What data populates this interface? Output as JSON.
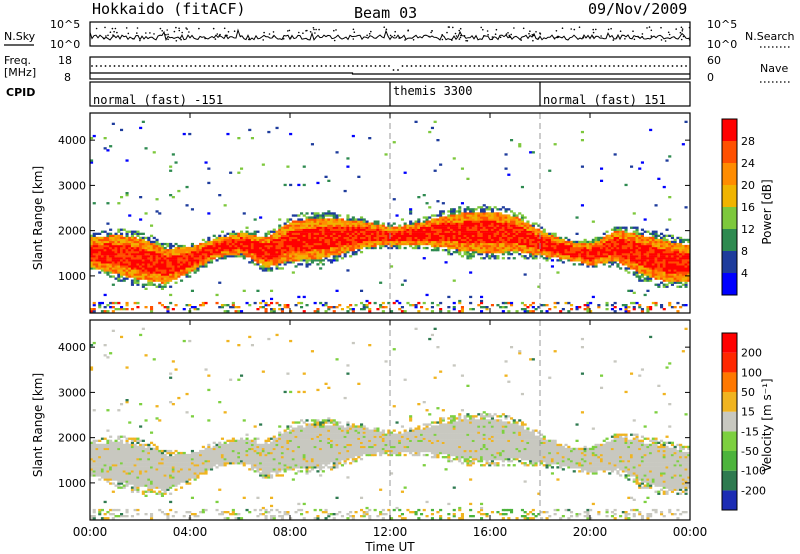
{
  "header": {
    "title": "Hokkaido (fitACF)",
    "beam": "Beam 03",
    "date": "09/Nov/2009"
  },
  "top_panels": {
    "nsky_label": "N.Sky",
    "nsky_ticks": [
      "10^5",
      "10^0"
    ],
    "nsearch_ticks": [
      "10^5",
      "10^0"
    ],
    "nsearch_label": "N.Search",
    "freq_label_1": "Freq.",
    "freq_label_2": "[MHz]",
    "freq_ticks": [
      "18",
      "8"
    ],
    "nave_ticks": [
      "60",
      "0"
    ],
    "nave_label": "Nave",
    "cpid_label": "CPID",
    "cpid_segments": [
      "normal (fast) -151",
      "themis 3300",
      "normal (fast) 151"
    ]
  },
  "power_panel": {
    "ylabel": "Slant Range [km]",
    "yticks": [
      "4000",
      "3000",
      "2000",
      "1000"
    ],
    "colorbar_label": "Power [dB]",
    "colorbar_ticks": [
      "28",
      "24",
      "20",
      "16",
      "12",
      "8",
      "4"
    ],
    "colors": [
      "#0000ff",
      "#1e3c9c",
      "#2e8a50",
      "#7dc83c",
      "#f0b400",
      "#ff8c00",
      "#ff5000",
      "#ff0000"
    ]
  },
  "velocity_panel": {
    "ylabel": "Slant Range [km]",
    "yticks": [
      "4000",
      "3000",
      "2000",
      "1000"
    ],
    "colorbar_label": "Velocity [m s⁻¹]",
    "colorbar_ticks": [
      "200",
      "100",
      "50",
      "15",
      "-15",
      "-50",
      "-100",
      "-200"
    ],
    "colors": [
      "#1c2cb4",
      "#2e7a50",
      "#4cb43c",
      "#7dd040",
      "#c8c8c0",
      "#f0b420",
      "#ff7800",
      "#ff2800",
      "#ff0000"
    ]
  },
  "xaxis": {
    "ticks": [
      "00:00",
      "04:00",
      "08:00",
      "12:00",
      "16:00",
      "20:00",
      "00:00"
    ],
    "label": "Time UT"
  },
  "chart_data": {
    "type": "heatmap",
    "title": "Hokkaido (fitACF)",
    "subtitle": "Beam 03",
    "xlabel": "Time UT",
    "ylabel": "Slant Range [km]",
    "xlim": [
      0,
      24
    ],
    "ylim": [
      180,
      4600
    ],
    "panels": [
      {
        "name": "Power [dB]",
        "scale": [
          0,
          32
        ],
        "band_center_km": [
          [
            0,
            1500
          ],
          [
            1,
            1450
          ],
          [
            2,
            1350
          ],
          [
            3,
            1200
          ],
          [
            4,
            1350
          ],
          [
            5,
            1600
          ],
          [
            6,
            1700
          ],
          [
            7,
            1500
          ],
          [
            8,
            1750
          ],
          [
            9,
            1800
          ],
          [
            10,
            1850
          ],
          [
            11,
            1900
          ],
          [
            12,
            1850
          ],
          [
            13,
            1900
          ],
          [
            14,
            1950
          ],
          [
            15,
            1950
          ],
          [
            16,
            1950
          ],
          [
            17,
            1900
          ],
          [
            18,
            1700
          ],
          [
            19,
            1550
          ],
          [
            20,
            1450
          ],
          [
            21,
            1650
          ],
          [
            22,
            1450
          ],
          [
            23,
            1300
          ],
          [
            24,
            1250
          ]
        ]
      },
      {
        "name": "Velocity [m s⁻¹]",
        "scale": [
          -200,
          200
        ]
      }
    ],
    "cpid_segments": [
      {
        "name": "normal (fast) -151",
        "start": 0,
        "end": 12
      },
      {
        "name": "themis 3300",
        "start": 12,
        "end": 18
      },
      {
        "name": "normal (fast) 151",
        "start": 18,
        "end": 24
      }
    ]
  }
}
